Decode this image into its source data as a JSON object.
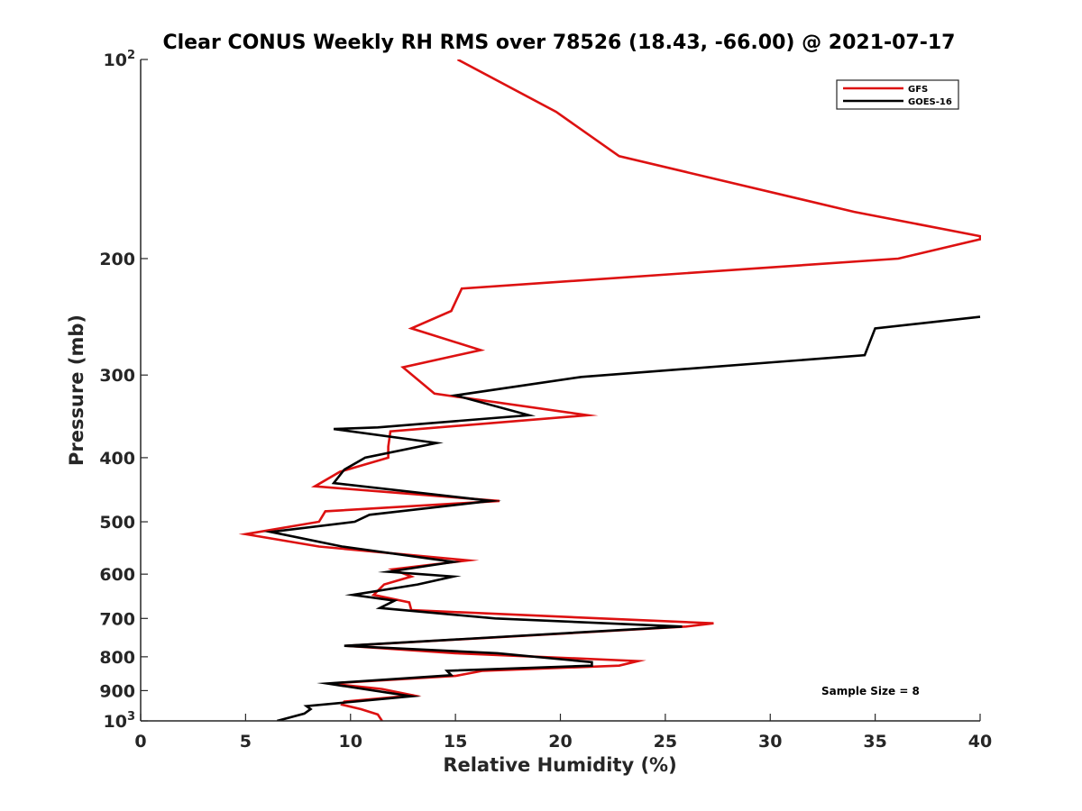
{
  "chart_data": {
    "type": "line",
    "title": "Clear CONUS Weekly RH RMS over 78526 (18.43, -66.00) @ 2021-07-17",
    "xlabel": "Relative Humidity (%)",
    "ylabel": "Pressure (mb)",
    "xlim": [
      0,
      40
    ],
    "ylim": [
      1000,
      100
    ],
    "y_scale": "log",
    "y_reversed": true,
    "grid": false,
    "legend_position": "top-right",
    "x_ticks": [
      {
        "value": 0,
        "label": "0"
      },
      {
        "value": 5,
        "label": "5"
      },
      {
        "value": 10,
        "label": "10"
      },
      {
        "value": 15,
        "label": "15"
      },
      {
        "value": 20,
        "label": "20"
      },
      {
        "value": 25,
        "label": "25"
      },
      {
        "value": 30,
        "label": "30"
      },
      {
        "value": 35,
        "label": "35"
      },
      {
        "value": 40,
        "label": "40"
      }
    ],
    "y_ticks": [
      {
        "value": 100,
        "label": "10",
        "sup": "2"
      },
      {
        "value": 200,
        "label": "200",
        "sup": ""
      },
      {
        "value": 300,
        "label": "300",
        "sup": ""
      },
      {
        "value": 400,
        "label": "400",
        "sup": ""
      },
      {
        "value": 500,
        "label": "500",
        "sup": ""
      },
      {
        "value": 600,
        "label": "600",
        "sup": ""
      },
      {
        "value": 700,
        "label": "700",
        "sup": ""
      },
      {
        "value": 800,
        "label": "800",
        "sup": ""
      },
      {
        "value": 900,
        "label": "900",
        "sup": ""
      },
      {
        "value": 1000,
        "label": "10",
        "sup": "3"
      }
    ],
    "annotation": "Sample Size = 8",
    "series": [
      {
        "name": "GFS",
        "color": "#dd1111",
        "points": [
          [
            15.1,
            100
          ],
          [
            19.8,
            120
          ],
          [
            22.8,
            140
          ],
          [
            34.0,
            170
          ],
          [
            40.0,
            185
          ],
          [
            40.0,
            187
          ],
          [
            36.1,
            200
          ],
          [
            15.3,
            222
          ],
          [
            14.8,
            240
          ],
          [
            12.9,
            255
          ],
          [
            16.2,
            275
          ],
          [
            12.5,
            292
          ],
          [
            14.0,
            320
          ],
          [
            21.3,
            345
          ],
          [
            11.9,
            365
          ],
          [
            11.8,
            385
          ],
          [
            11.8,
            400
          ],
          [
            9.5,
            420
          ],
          [
            8.3,
            442
          ],
          [
            17.1,
            465
          ],
          [
            8.8,
            482
          ],
          [
            8.5,
            500
          ],
          [
            5.0,
            522
          ],
          [
            8.5,
            545
          ],
          [
            15.6,
            572
          ],
          [
            12.0,
            590
          ],
          [
            12.9,
            605
          ],
          [
            11.6,
            622
          ],
          [
            11.1,
            645
          ],
          [
            12.8,
            662
          ],
          [
            12.9,
            680
          ],
          [
            27.3,
            712
          ],
          [
            26.0,
            720
          ],
          [
            9.8,
            770
          ],
          [
            15.0,
            790
          ],
          [
            23.7,
            812
          ],
          [
            22.8,
            825
          ],
          [
            16.3,
            840
          ],
          [
            15.0,
            855
          ],
          [
            9.0,
            878
          ],
          [
            11.5,
            895
          ],
          [
            13.0,
            915
          ],
          [
            9.7,
            935
          ],
          [
            9.6,
            945
          ],
          [
            10.5,
            960
          ],
          [
            11.3,
            978
          ],
          [
            11.5,
            1000
          ]
        ]
      },
      {
        "name": "GOES-16",
        "color": "#000000",
        "points": [
          [
            40.0,
            245
          ],
          [
            35.0,
            255
          ],
          [
            34.5,
            280
          ],
          [
            21.0,
            302
          ],
          [
            15.0,
            322
          ],
          [
            18.5,
            345
          ],
          [
            11.3,
            360
          ],
          [
            9.2,
            362
          ],
          [
            14.1,
            380
          ],
          [
            10.7,
            400
          ],
          [
            9.7,
            417
          ],
          [
            9.2,
            437
          ],
          [
            16.7,
            465
          ],
          [
            10.9,
            488
          ],
          [
            10.2,
            500
          ],
          [
            6.2,
            518
          ],
          [
            9.6,
            545
          ],
          [
            14.9,
            575
          ],
          [
            11.8,
            595
          ],
          [
            14.9,
            605
          ],
          [
            13.2,
            622
          ],
          [
            10.1,
            645
          ],
          [
            12.1,
            658
          ],
          [
            11.4,
            675
          ],
          [
            16.9,
            700
          ],
          [
            25.8,
            720
          ],
          [
            9.7,
            770
          ],
          [
            17.0,
            790
          ],
          [
            21.5,
            815
          ],
          [
            21.5,
            825
          ],
          [
            14.6,
            840
          ],
          [
            14.8,
            853
          ],
          [
            8.9,
            878
          ],
          [
            12.9,
            918
          ],
          [
            7.9,
            950
          ],
          [
            8.1,
            960
          ],
          [
            7.8,
            975
          ],
          [
            6.5,
            1000
          ]
        ]
      }
    ]
  }
}
